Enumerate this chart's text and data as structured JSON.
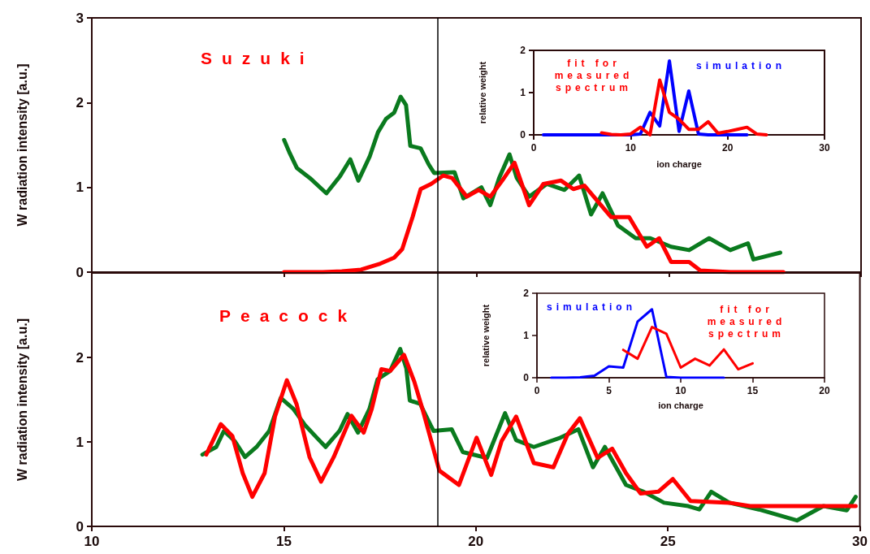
{
  "chart_data": [
    {
      "type": "line",
      "ylabel": "W radiation intensity [a.u.]",
      "annotations": [
        "Suzuki"
      ],
      "xlim": [
        10,
        30
      ],
      "xticks": [
        10,
        15,
        20,
        25,
        30
      ],
      "ylim": [
        0,
        3
      ],
      "yticks": [
        0,
        1,
        2,
        3
      ],
      "tick_labels": "y",
      "marker": "none",
      "line_style": "solid",
      "ref_lines": [
        {
          "axis": "x",
          "value": 19,
          "label": null,
          "color": "#000000"
        }
      ],
      "series": [
        {
          "color": "#0a7a1e",
          "x": [
            15.0,
            15.13,
            15.33,
            15.67,
            16.1,
            16.45,
            16.72,
            16.93,
            17.23,
            17.44,
            17.65,
            17.86,
            18.03,
            18.17,
            18.28,
            18.55,
            18.76,
            18.9,
            19.43,
            19.66,
            20.13,
            20.36,
            20.59,
            20.86,
            21.05,
            21.37,
            21.83,
            22.29,
            22.67,
            22.98,
            23.28,
            23.68,
            24.14,
            24.52,
            25.06,
            25.53,
            26.05,
            26.6,
            27.06,
            27.2,
            27.9
          ],
          "values": [
            1.56,
            1.42,
            1.23,
            1.11,
            0.93,
            1.13,
            1.33,
            1.08,
            1.37,
            1.65,
            1.81,
            1.88,
            2.07,
            1.97,
            1.49,
            1.46,
            1.27,
            1.17,
            1.18,
            0.87,
            1.0,
            0.79,
            1.11,
            1.39,
            1.11,
            0.89,
            1.04,
            0.97,
            1.14,
            0.68,
            0.93,
            0.55,
            0.4,
            0.4,
            0.3,
            0.26,
            0.4,
            0.26,
            0.34,
            0.15,
            0.23
          ]
        },
        {
          "color": "#ff0000",
          "x": [
            15.0,
            16.0,
            16.5,
            17.0,
            17.5,
            17.86,
            18.07,
            18.34,
            18.55,
            18.82,
            19.14,
            19.37,
            19.75,
            20.06,
            20.36,
            20.67,
            20.99,
            21.37,
            21.74,
            22.2,
            22.52,
            22.81,
            23.5,
            23.97,
            24.43,
            24.75,
            25.06,
            25.53,
            25.82,
            26.6,
            27.98
          ],
          "values": [
            0.0,
            0.0,
            0.01,
            0.03,
            0.1,
            0.17,
            0.27,
            0.65,
            0.98,
            1.04,
            1.14,
            1.11,
            0.89,
            0.97,
            0.89,
            1.08,
            1.29,
            0.79,
            1.04,
            1.08,
            0.98,
            1.02,
            0.65,
            0.65,
            0.3,
            0.4,
            0.12,
            0.12,
            0.02,
            0.0,
            0.0
          ]
        }
      ]
    },
    {
      "type": "line",
      "ylabel": "W radiation intensity [a.u.]",
      "annotations": [
        "Peacock"
      ],
      "xlim": [
        10,
        30
      ],
      "xticks": [
        10,
        15,
        20,
        25,
        30
      ],
      "ylim": [
        0,
        3
      ],
      "yticks": [
        0,
        1,
        2
      ],
      "marker": "none",
      "line_style": "solid",
      "ref_lines": [
        {
          "axis": "x",
          "value": 19,
          "label": null,
          "color": "#000000"
        }
      ],
      "series": [
        {
          "color": "#0a7a1e",
          "x": [
            12.88,
            13.24,
            13.44,
            13.72,
            13.99,
            14.29,
            14.62,
            14.92,
            15.25,
            15.55,
            15.88,
            16.09,
            16.45,
            16.66,
            16.93,
            17.23,
            17.44,
            17.77,
            18.03,
            18.19,
            18.28,
            18.55,
            18.82,
            18.9,
            19.37,
            19.66,
            20.29,
            20.76,
            21.05,
            21.51,
            22.2,
            22.67,
            23.05,
            23.36,
            23.91,
            24.37,
            24.9,
            25.53,
            25.82,
            26.13,
            26.6,
            27.37,
            28.36,
            29.05,
            29.66,
            29.89
          ],
          "values": [
            0.85,
            0.94,
            1.13,
            1.01,
            0.82,
            0.94,
            1.13,
            1.52,
            1.39,
            1.2,
            1.04,
            0.94,
            1.13,
            1.33,
            1.11,
            1.39,
            1.74,
            1.84,
            2.1,
            1.87,
            1.49,
            1.45,
            1.2,
            1.13,
            1.15,
            0.88,
            0.81,
            1.34,
            1.02,
            0.94,
            1.05,
            1.15,
            0.7,
            0.94,
            0.49,
            0.41,
            0.28,
            0.24,
            0.2,
            0.41,
            0.28,
            0.2,
            0.07,
            0.24,
            0.19,
            0.35
          ]
        },
        {
          "color": "#ff0000",
          "x": [
            12.98,
            13.36,
            13.66,
            13.93,
            14.18,
            14.5,
            14.77,
            15.08,
            15.33,
            15.67,
            15.97,
            16.3,
            16.76,
            17.08,
            17.29,
            17.54,
            17.77,
            18.13,
            18.4,
            18.61,
            18.9,
            19.05,
            19.56,
            19.79,
            20.02,
            20.4,
            20.67,
            21.05,
            21.51,
            22.02,
            22.39,
            22.71,
            23.17,
            23.55,
            23.91,
            24.29,
            24.75,
            25.13,
            25.59,
            26.6,
            27.14,
            29.89
          ],
          "values": [
            0.85,
            1.21,
            1.07,
            0.63,
            0.35,
            0.63,
            1.3,
            1.73,
            1.45,
            0.82,
            0.53,
            0.82,
            1.31,
            1.11,
            1.39,
            1.86,
            1.84,
            2.03,
            1.71,
            1.39,
            0.91,
            0.66,
            0.49,
            0.77,
            1.05,
            0.61,
            1.01,
            1.3,
            0.75,
            0.7,
            1.09,
            1.28,
            0.81,
            0.92,
            0.63,
            0.39,
            0.41,
            0.56,
            0.3,
            0.28,
            0.24,
            0.24
          ]
        }
      ]
    },
    {
      "type": "line",
      "xlabel": "ion charge",
      "ylabel": "relative weight",
      "xlim": [
        0,
        30
      ],
      "xticks": [
        0,
        10,
        20,
        30
      ],
      "ylim": [
        0,
        2
      ],
      "yticks": [
        0,
        1,
        2
      ],
      "marker": "none",
      "line_style": "solid",
      "series": [
        {
          "name": "simulation",
          "color": "#0000ff",
          "x": [
            1,
            2,
            3,
            4,
            5,
            6,
            7,
            8,
            9,
            10,
            11,
            12,
            13,
            14,
            15,
            16,
            17,
            18,
            19,
            20,
            21,
            22
          ],
          "values": [
            0,
            0,
            0,
            0,
            0,
            0,
            0,
            0,
            0,
            0,
            0.02,
            0.53,
            0.21,
            1.75,
            0.08,
            1.04,
            0.02,
            0,
            0,
            0,
            0,
            0
          ]
        },
        {
          "name": "fit for measured spectrum",
          "color": "#ff0000",
          "x": [
            7,
            8,
            9,
            10,
            11,
            12,
            13,
            14,
            15,
            16,
            17,
            18,
            19,
            20,
            21,
            22,
            23,
            24
          ],
          "values": [
            0.05,
            0.01,
            0,
            0.02,
            0.18,
            0,
            1.3,
            0.53,
            0.37,
            0.13,
            0.13,
            0.31,
            0.04,
            0.08,
            0.13,
            0.18,
            0.02,
            0
          ]
        }
      ]
    },
    {
      "type": "line",
      "xlabel": "ion charge",
      "ylabel": "relative weight",
      "xlim": [
        0,
        20
      ],
      "xticks": [
        0,
        5,
        10,
        15,
        20
      ],
      "ylim": [
        0,
        2
      ],
      "yticks": [
        0,
        1,
        2
      ],
      "marker": "none",
      "line_style": "solid",
      "series": [
        {
          "name": "simulation",
          "color": "#0000ff",
          "x": [
            1,
            2,
            3,
            4,
            5,
            6,
            7,
            8,
            9,
            10,
            11,
            12,
            13
          ],
          "values": [
            0,
            0,
            0.01,
            0.05,
            0.27,
            0.24,
            1.33,
            1.62,
            0.02,
            0,
            0,
            0,
            0
          ]
        },
        {
          "name": "fit for measured spectrum",
          "color": "#ff0000",
          "x": [
            6,
            7,
            8,
            9,
            10,
            11,
            12,
            13,
            14,
            15
          ],
          "values": [
            0.66,
            0.45,
            1.2,
            1.04,
            0.24,
            0.45,
            0.29,
            0.67,
            0.2,
            0.34
          ]
        }
      ]
    }
  ]
}
